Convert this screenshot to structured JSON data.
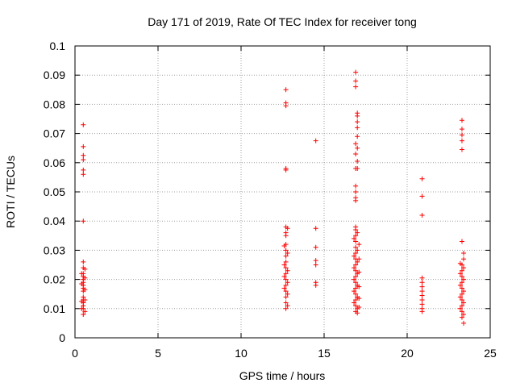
{
  "chart_data": {
    "type": "scatter",
    "title": "Day 171 of 2019, Rate Of TEC Index for receiver tong",
    "xlabel": "GPS time / hours",
    "ylabel": "ROTI / TECUs",
    "xlim": [
      0,
      25
    ],
    "ylim": [
      0,
      0.1
    ],
    "xticks": [
      0,
      5,
      10,
      15,
      20,
      25
    ],
    "xtick_labels": [
      "0",
      "5",
      "10",
      "15",
      "20",
      "25"
    ],
    "yticks": [
      0,
      0.01,
      0.02,
      0.03,
      0.04,
      0.05,
      0.06,
      0.07,
      0.08,
      0.09,
      0.1
    ],
    "ytick_labels": [
      "0",
      "0.01",
      "0.02",
      "0.03",
      "0.04",
      "0.05",
      "0.06",
      "0.07",
      "0.08",
      "0.09",
      "0.1"
    ],
    "grid": true,
    "marker": "+",
    "marker_color": "#ff0000",
    "series": [
      {
        "name": "ROTI",
        "points": [
          [
            0.5,
            0.073
          ],
          [
            0.5,
            0.0655
          ],
          [
            0.5,
            0.0625
          ],
          [
            0.5,
            0.061
          ],
          [
            0.5,
            0.0575
          ],
          [
            0.5,
            0.056
          ],
          [
            0.5,
            0.04
          ],
          [
            0.5,
            0.026
          ],
          [
            0.5,
            0.024
          ],
          [
            0.5,
            0.022
          ],
          [
            0.5,
            0.021
          ],
          [
            0.5,
            0.02
          ],
          [
            0.5,
            0.019
          ],
          [
            0.5,
            0.018
          ],
          [
            0.5,
            0.017
          ],
          [
            0.5,
            0.016
          ],
          [
            0.5,
            0.014
          ],
          [
            0.5,
            0.013
          ],
          [
            0.5,
            0.012
          ],
          [
            0.5,
            0.011
          ],
          [
            0.5,
            0.01
          ],
          [
            0.5,
            0.008
          ],
          [
            0.4,
            0.022
          ],
          [
            0.4,
            0.0185
          ],
          [
            0.4,
            0.0125
          ],
          [
            0.4,
            0.01
          ],
          [
            0.6,
            0.0235
          ],
          [
            0.6,
            0.0205
          ],
          [
            0.6,
            0.0165
          ],
          [
            0.6,
            0.013
          ],
          [
            0.6,
            0.009
          ],
          [
            12.7,
            0.085
          ],
          [
            12.7,
            0.0805
          ],
          [
            12.7,
            0.0795
          ],
          [
            12.7,
            0.058
          ],
          [
            12.7,
            0.0575
          ],
          [
            12.7,
            0.038
          ],
          [
            12.7,
            0.036
          ],
          [
            12.7,
            0.035
          ],
          [
            12.7,
            0.032
          ],
          [
            12.7,
            0.03
          ],
          [
            12.7,
            0.028
          ],
          [
            12.7,
            0.026
          ],
          [
            12.7,
            0.024
          ],
          [
            12.7,
            0.022
          ],
          [
            12.7,
            0.02
          ],
          [
            12.7,
            0.018
          ],
          [
            12.7,
            0.016
          ],
          [
            12.7,
            0.014
          ],
          [
            12.7,
            0.012
          ],
          [
            12.7,
            0.01
          ],
          [
            12.6,
            0.0315
          ],
          [
            12.6,
            0.025
          ],
          [
            12.6,
            0.021
          ],
          [
            12.6,
            0.017
          ],
          [
            12.8,
            0.0375
          ],
          [
            12.8,
            0.029
          ],
          [
            12.8,
            0.023
          ],
          [
            12.8,
            0.019
          ],
          [
            12.8,
            0.015
          ],
          [
            12.8,
            0.011
          ],
          [
            14.5,
            0.0675
          ],
          [
            14.5,
            0.0375
          ],
          [
            14.5,
            0.031
          ],
          [
            14.5,
            0.0265
          ],
          [
            14.5,
            0.025
          ],
          [
            14.5,
            0.019
          ],
          [
            14.5,
            0.018
          ],
          [
            16.9,
            0.091
          ],
          [
            16.9,
            0.088
          ],
          [
            16.9,
            0.086
          ],
          [
            16.9,
            0.0665
          ],
          [
            16.9,
            0.063
          ],
          [
            16.9,
            0.058
          ],
          [
            16.9,
            0.052
          ],
          [
            16.9,
            0.05
          ],
          [
            16.9,
            0.048
          ],
          [
            16.9,
            0.047
          ],
          [
            16.9,
            0.038
          ],
          [
            16.9,
            0.037
          ],
          [
            16.9,
            0.035
          ],
          [
            16.9,
            0.033
          ],
          [
            16.9,
            0.031
          ],
          [
            16.9,
            0.029
          ],
          [
            16.9,
            0.027
          ],
          [
            16.9,
            0.025
          ],
          [
            16.9,
            0.023
          ],
          [
            16.9,
            0.021
          ],
          [
            16.9,
            0.019
          ],
          [
            16.9,
            0.017
          ],
          [
            16.9,
            0.015
          ],
          [
            16.9,
            0.013
          ],
          [
            16.9,
            0.011
          ],
          [
            16.9,
            0.009
          ],
          [
            17.0,
            0.077
          ],
          [
            17.0,
            0.076
          ],
          [
            17.0,
            0.074
          ],
          [
            17.0,
            0.072
          ],
          [
            17.0,
            0.069
          ],
          [
            17.0,
            0.065
          ],
          [
            17.0,
            0.0605
          ],
          [
            17.0,
            0.058
          ],
          [
            17.0,
            0.036
          ],
          [
            17.0,
            0.03
          ],
          [
            17.0,
            0.026
          ],
          [
            17.0,
            0.022
          ],
          [
            17.0,
            0.018
          ],
          [
            17.0,
            0.014
          ],
          [
            17.0,
            0.01
          ],
          [
            17.0,
            0.0085
          ],
          [
            16.8,
            0.034
          ],
          [
            16.8,
            0.028
          ],
          [
            16.8,
            0.024
          ],
          [
            16.8,
            0.02
          ],
          [
            16.8,
            0.016
          ],
          [
            16.8,
            0.012
          ],
          [
            17.1,
            0.032
          ],
          [
            17.1,
            0.027
          ],
          [
            17.1,
            0.0225
          ],
          [
            17.1,
            0.0175
          ],
          [
            17.1,
            0.0135
          ],
          [
            17.1,
            0.0105
          ],
          [
            20.9,
            0.0545
          ],
          [
            20.9,
            0.0485
          ],
          [
            20.9,
            0.042
          ],
          [
            20.9,
            0.0205
          ],
          [
            20.9,
            0.019
          ],
          [
            20.9,
            0.0175
          ],
          [
            20.9,
            0.016
          ],
          [
            20.9,
            0.0145
          ],
          [
            20.9,
            0.013
          ],
          [
            20.9,
            0.0115
          ],
          [
            20.9,
            0.01
          ],
          [
            20.9,
            0.009
          ],
          [
            23.3,
            0.0745
          ],
          [
            23.3,
            0.0715
          ],
          [
            23.3,
            0.0695
          ],
          [
            23.3,
            0.0675
          ],
          [
            23.3,
            0.0645
          ],
          [
            23.3,
            0.033
          ],
          [
            23.3,
            0.025
          ],
          [
            23.3,
            0.023
          ],
          [
            23.3,
            0.021
          ],
          [
            23.3,
            0.019
          ],
          [
            23.3,
            0.017
          ],
          [
            23.3,
            0.015
          ],
          [
            23.3,
            0.013
          ],
          [
            23.3,
            0.011
          ],
          [
            23.3,
            0.009
          ],
          [
            23.3,
            0.007
          ],
          [
            23.2,
            0.0255
          ],
          [
            23.2,
            0.022
          ],
          [
            23.2,
            0.018
          ],
          [
            23.2,
            0.014
          ],
          [
            23.2,
            0.01
          ],
          [
            23.4,
            0.029
          ],
          [
            23.4,
            0.027
          ],
          [
            23.4,
            0.024
          ],
          [
            23.4,
            0.02
          ],
          [
            23.4,
            0.016
          ],
          [
            23.4,
            0.012
          ],
          [
            23.4,
            0.008
          ],
          [
            23.4,
            0.005
          ]
        ]
      }
    ]
  }
}
